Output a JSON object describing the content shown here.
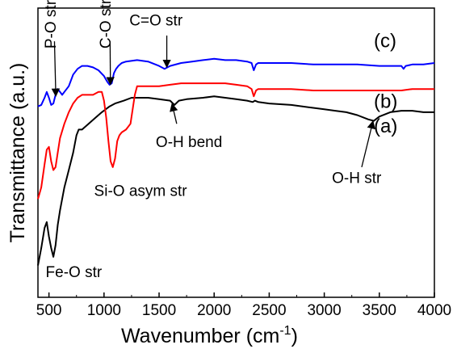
{
  "chart_data": {
    "type": "line",
    "title": "",
    "xlabel_main": "Wavenumber (cm",
    "xlabel_sup": "-1",
    "xlabel_close": ")",
    "ylabel": "Transmittance (a.u.)",
    "xlim": [
      400,
      4000
    ],
    "ylim": [
      0,
      1
    ],
    "xticks": [
      "500",
      "1000",
      "1500",
      "2000",
      "2500",
      "3000",
      "3500",
      "4000"
    ],
    "grid": false,
    "series": [
      {
        "name": "(a)",
        "color": "#000000",
        "x": [
          400,
          430,
          460,
          480,
          500,
          520,
          540,
          560,
          580,
          600,
          640,
          680,
          720,
          750,
          770,
          800,
          860,
          920,
          980,
          1050,
          1100,
          1180,
          1250,
          1300,
          1400,
          1500,
          1600,
          1640,
          1680,
          1750,
          1900,
          2000,
          2100,
          2200,
          2300,
          2350,
          2370,
          2400,
          2500,
          2700,
          2900,
          3000,
          3100,
          3200,
          3300,
          3400,
          3450,
          3500,
          3600,
          3700,
          3800,
          3900,
          4000
        ],
        "y": [
          0.11,
          0.17,
          0.24,
          0.26,
          0.21,
          0.17,
          0.14,
          0.18,
          0.25,
          0.3,
          0.38,
          0.44,
          0.5,
          0.56,
          0.58,
          0.58,
          0.6,
          0.62,
          0.64,
          0.66,
          0.67,
          0.68,
          0.69,
          0.69,
          0.69,
          0.685,
          0.68,
          0.665,
          0.68,
          0.685,
          0.69,
          0.695,
          0.69,
          0.685,
          0.68,
          0.675,
          0.68,
          0.675,
          0.67,
          0.665,
          0.655,
          0.65,
          0.645,
          0.64,
          0.63,
          0.615,
          0.61,
          0.625,
          0.64,
          0.645,
          0.645,
          0.64,
          0.64
        ]
      },
      {
        "name": "(b)",
        "color": "#ff0000",
        "x": [
          400,
          430,
          460,
          480,
          500,
          520,
          540,
          560,
          580,
          600,
          640,
          680,
          720,
          760,
          800,
          860,
          900,
          950,
          980,
          1000,
          1020,
          1040,
          1060,
          1080,
          1100,
          1120,
          1140,
          1160,
          1200,
          1240,
          1280,
          1300,
          1400,
          1500,
          1600,
          1700,
          1800,
          1900,
          2000,
          2100,
          2200,
          2300,
          2340,
          2360,
          2380,
          2400,
          2500,
          2700,
          2900,
          3100,
          3300,
          3500,
          3700,
          3800,
          3900,
          4000
        ],
        "y": [
          0.34,
          0.38,
          0.46,
          0.51,
          0.52,
          0.47,
          0.44,
          0.45,
          0.5,
          0.55,
          0.6,
          0.64,
          0.67,
          0.69,
          0.7,
          0.7,
          0.7,
          0.71,
          0.71,
          0.68,
          0.62,
          0.54,
          0.47,
          0.45,
          0.48,
          0.54,
          0.56,
          0.57,
          0.58,
          0.6,
          0.7,
          0.73,
          0.73,
          0.73,
          0.735,
          0.74,
          0.74,
          0.74,
          0.74,
          0.74,
          0.735,
          0.73,
          0.72,
          0.695,
          0.715,
          0.72,
          0.72,
          0.72,
          0.715,
          0.715,
          0.715,
          0.715,
          0.715,
          0.72,
          0.72,
          0.72
        ]
      },
      {
        "name": "(c)",
        "color": "#0000ff",
        "x": [
          400,
          430,
          460,
          480,
          500,
          520,
          540,
          560,
          580,
          600,
          620,
          640,
          680,
          720,
          760,
          800,
          850,
          900,
          950,
          1000,
          1030,
          1050,
          1070,
          1090,
          1110,
          1130,
          1160,
          1200,
          1300,
          1400,
          1500,
          1550,
          1600,
          1700,
          1800,
          1900,
          2000,
          2100,
          2200,
          2300,
          2340,
          2360,
          2380,
          2400,
          2500,
          2700,
          2900,
          3100,
          3300,
          3500,
          3700,
          3720,
          3740,
          3800,
          3900,
          4000
        ],
        "y": [
          0.66,
          0.665,
          0.69,
          0.71,
          0.69,
          0.665,
          0.67,
          0.7,
          0.72,
          0.71,
          0.7,
          0.71,
          0.73,
          0.77,
          0.79,
          0.8,
          0.8,
          0.795,
          0.785,
          0.765,
          0.745,
          0.735,
          0.74,
          0.775,
          0.79,
          0.8,
          0.81,
          0.815,
          0.82,
          0.815,
          0.8,
          0.79,
          0.8,
          0.81,
          0.815,
          0.82,
          0.825,
          0.82,
          0.82,
          0.815,
          0.81,
          0.785,
          0.805,
          0.81,
          0.81,
          0.81,
          0.805,
          0.805,
          0.805,
          0.8,
          0.8,
          0.79,
          0.8,
          0.805,
          0.805,
          0.81
        ]
      }
    ],
    "curve_labels": [
      {
        "text": "(a)",
        "x": 3450,
        "y": 0.57
      },
      {
        "text": "(b)",
        "x": 3450,
        "y": 0.655
      },
      {
        "text": "(c)",
        "x": 3450,
        "y": 0.865
      }
    ],
    "annotations": [
      {
        "text": "P-O str",
        "rotate": true,
        "tx": 562,
        "ty": 0.86,
        "ax": 550,
        "ay1": 0.885,
        "ax2": 562,
        "ay2": 0.7
      },
      {
        "text": "C-O str",
        "rotate": true,
        "tx": 1060,
        "ty": 0.86,
        "ax": 1055,
        "ay1": 0.885,
        "ax2": 1058,
        "ay2": 0.74
      },
      {
        "text": "C=O str",
        "rotate": false,
        "tx": 1230,
        "ty": 0.94,
        "ax": 1570,
        "ay1": 0.905,
        "ax2": 1570,
        "ay2": 0.8
      },
      {
        "text": "O-H bend",
        "rotate": false,
        "tx": 1470,
        "ty": 0.52,
        "ax": 1660,
        "ay1": 0.6,
        "ax2": 1620,
        "ay2": 0.665
      },
      {
        "text": "Si-O asym str",
        "rotate": false,
        "tx": 910,
        "ty": 0.35,
        "ax": null
      },
      {
        "text": "O-H str",
        "rotate": false,
        "tx": 3070,
        "ty": 0.395,
        "ax": 3340,
        "ay1": 0.45,
        "ax2": 3440,
        "ay2": 0.605
      },
      {
        "text": "Fe-O str",
        "rotate": false,
        "tx": 470,
        "ty": 0.07,
        "ax": null
      }
    ]
  }
}
